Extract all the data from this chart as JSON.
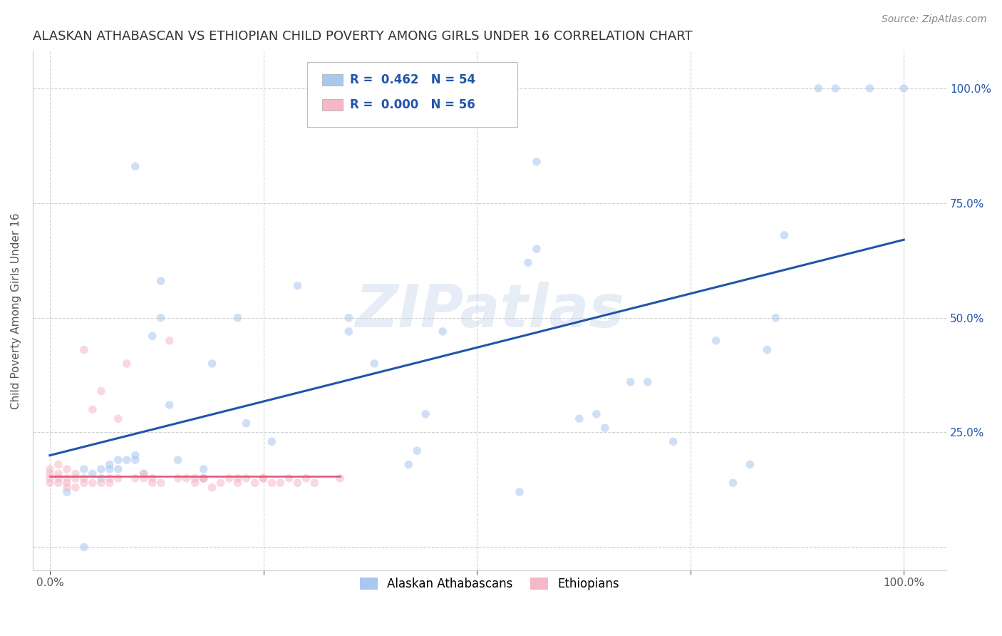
{
  "title": "ALASKAN ATHABASCAN VS ETHIOPIAN CHILD POVERTY AMONG GIRLS UNDER 16 CORRELATION CHART",
  "source": "Source: ZipAtlas.com",
  "ylabel": "Child Poverty Among Girls Under 16",
  "xlim": [
    -0.02,
    1.05
  ],
  "ylim": [
    -0.05,
    1.08
  ],
  "xticks": [
    0,
    0.25,
    0.5,
    0.75,
    1.0
  ],
  "yticks": [
    0,
    0.25,
    0.5,
    0.75,
    1.0
  ],
  "xticklabels": [
    "0.0%",
    "",
    "",
    "",
    "100.0%"
  ],
  "yticklabels_right": [
    "",
    "25.0%",
    "50.0%",
    "75.0%",
    "100.0%"
  ],
  "blue_color": "#a8c8f0",
  "pink_color": "#f5b8c8",
  "blue_line_color": "#2255aa",
  "pink_line_color": "#dd5577",
  "background_color": "#ffffff",
  "watermark_text": "ZIPatlas",
  "blue_x": [
    0.02,
    0.04,
    0.04,
    0.05,
    0.06,
    0.06,
    0.07,
    0.07,
    0.08,
    0.08,
    0.09,
    0.1,
    0.1,
    0.1,
    0.11,
    0.12,
    0.13,
    0.13,
    0.14,
    0.15,
    0.18,
    0.18,
    0.19,
    0.22,
    0.23,
    0.26,
    0.29,
    0.35,
    0.35,
    0.38,
    0.42,
    0.43,
    0.44,
    0.46,
    0.55,
    0.56,
    0.57,
    0.57,
    0.62,
    0.64,
    0.65,
    0.68,
    0.7,
    0.73,
    0.78,
    0.8,
    0.82,
    0.84,
    0.85,
    0.86,
    0.9,
    0.92,
    0.96,
    1.0
  ],
  "blue_y": [
    0.12,
    0.0,
    0.17,
    0.16,
    0.17,
    0.15,
    0.18,
    0.17,
    0.17,
    0.19,
    0.19,
    0.2,
    0.19,
    0.83,
    0.16,
    0.46,
    0.5,
    0.58,
    0.31,
    0.19,
    0.17,
    0.15,
    0.4,
    0.5,
    0.27,
    0.23,
    0.57,
    0.47,
    0.5,
    0.4,
    0.18,
    0.21,
    0.29,
    0.47,
    0.12,
    0.62,
    0.65,
    0.84,
    0.28,
    0.29,
    0.26,
    0.36,
    0.36,
    0.23,
    0.45,
    0.14,
    0.18,
    0.43,
    0.5,
    0.68,
    1.0,
    1.0,
    1.0,
    1.0
  ],
  "pink_x": [
    0.0,
    0.0,
    0.0,
    0.0,
    0.01,
    0.01,
    0.01,
    0.01,
    0.02,
    0.02,
    0.02,
    0.02,
    0.03,
    0.03,
    0.03,
    0.04,
    0.04,
    0.04,
    0.05,
    0.05,
    0.06,
    0.06,
    0.07,
    0.07,
    0.08,
    0.08,
    0.09,
    0.1,
    0.11,
    0.11,
    0.12,
    0.12,
    0.13,
    0.14,
    0.15,
    0.16,
    0.17,
    0.17,
    0.18,
    0.18,
    0.19,
    0.2,
    0.21,
    0.22,
    0.22,
    0.23,
    0.24,
    0.25,
    0.25,
    0.26,
    0.27,
    0.28,
    0.29,
    0.3,
    0.31,
    0.34
  ],
  "pink_y": [
    0.14,
    0.15,
    0.16,
    0.17,
    0.14,
    0.15,
    0.16,
    0.18,
    0.13,
    0.14,
    0.15,
    0.17,
    0.13,
    0.15,
    0.16,
    0.14,
    0.15,
    0.43,
    0.14,
    0.3,
    0.14,
    0.34,
    0.14,
    0.15,
    0.15,
    0.28,
    0.4,
    0.15,
    0.15,
    0.16,
    0.14,
    0.15,
    0.14,
    0.45,
    0.15,
    0.15,
    0.15,
    0.14,
    0.15,
    0.15,
    0.13,
    0.14,
    0.15,
    0.15,
    0.14,
    0.15,
    0.14,
    0.15,
    0.15,
    0.14,
    0.14,
    0.15,
    0.14,
    0.15,
    0.14,
    0.15
  ],
  "blue_line_x0": 0.0,
  "blue_line_x1": 1.0,
  "blue_line_y0": 0.2,
  "blue_line_y1": 0.67,
  "pink_line_x0": 0.0,
  "pink_line_x1": 0.34,
  "pink_line_y": 0.155,
  "marker_size": 70,
  "alpha": 0.55,
  "title_fontsize": 13,
  "label_fontsize": 11,
  "tick_fontsize": 11,
  "source_fontsize": 10
}
